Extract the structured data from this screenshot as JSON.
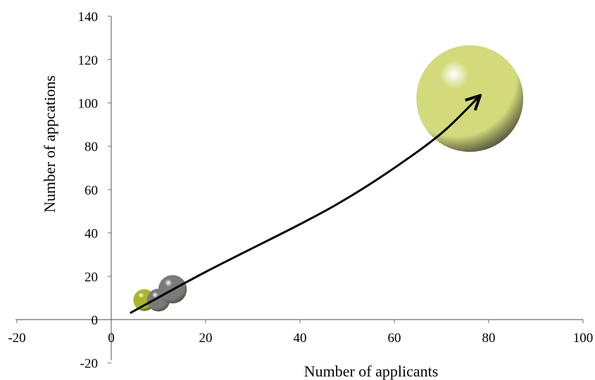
{
  "colors": {
    "background": "#ffffff",
    "axis": "#6e6e6e",
    "arrow": "#000000",
    "bubble_olive": "#a9b62a",
    "bubble_gray": "#7a7a7a",
    "bubble_lightgreen": "#d2da7c"
  },
  "chart_data": {
    "type": "scatter",
    "variant": "bubble",
    "title": "",
    "xlabel": "Number of applicants",
    "ylabel": "Number of appcations",
    "xlim": [
      -20,
      100
    ],
    "ylim": [
      -20,
      140
    ],
    "x_ticks": [
      -20,
      0,
      20,
      40,
      60,
      80,
      100
    ],
    "y_ticks": [
      -20,
      0,
      20,
      40,
      60,
      80,
      100,
      120,
      140
    ],
    "grid": false,
    "legend": "none",
    "bubbles": [
      {
        "x": 7,
        "y": 9,
        "size": 1.0,
        "color": "#a9b62a"
      },
      {
        "x": 10,
        "y": 9,
        "size": 1.1,
        "color": "#7a7a7a"
      },
      {
        "x": 13,
        "y": 14,
        "size": 1.7,
        "color": "#7a7a7a"
      },
      {
        "x": 76,
        "y": 102,
        "size": 24,
        "color": "#d2da7c"
      }
    ],
    "trend_arrow": {
      "points": [
        [
          4,
          3
        ],
        [
          20,
          22
        ],
        [
          40,
          44
        ],
        [
          50,
          56
        ],
        [
          60,
          70
        ],
        [
          70,
          86
        ],
        [
          78,
          103
        ]
      ],
      "color": "#000000"
    }
  }
}
